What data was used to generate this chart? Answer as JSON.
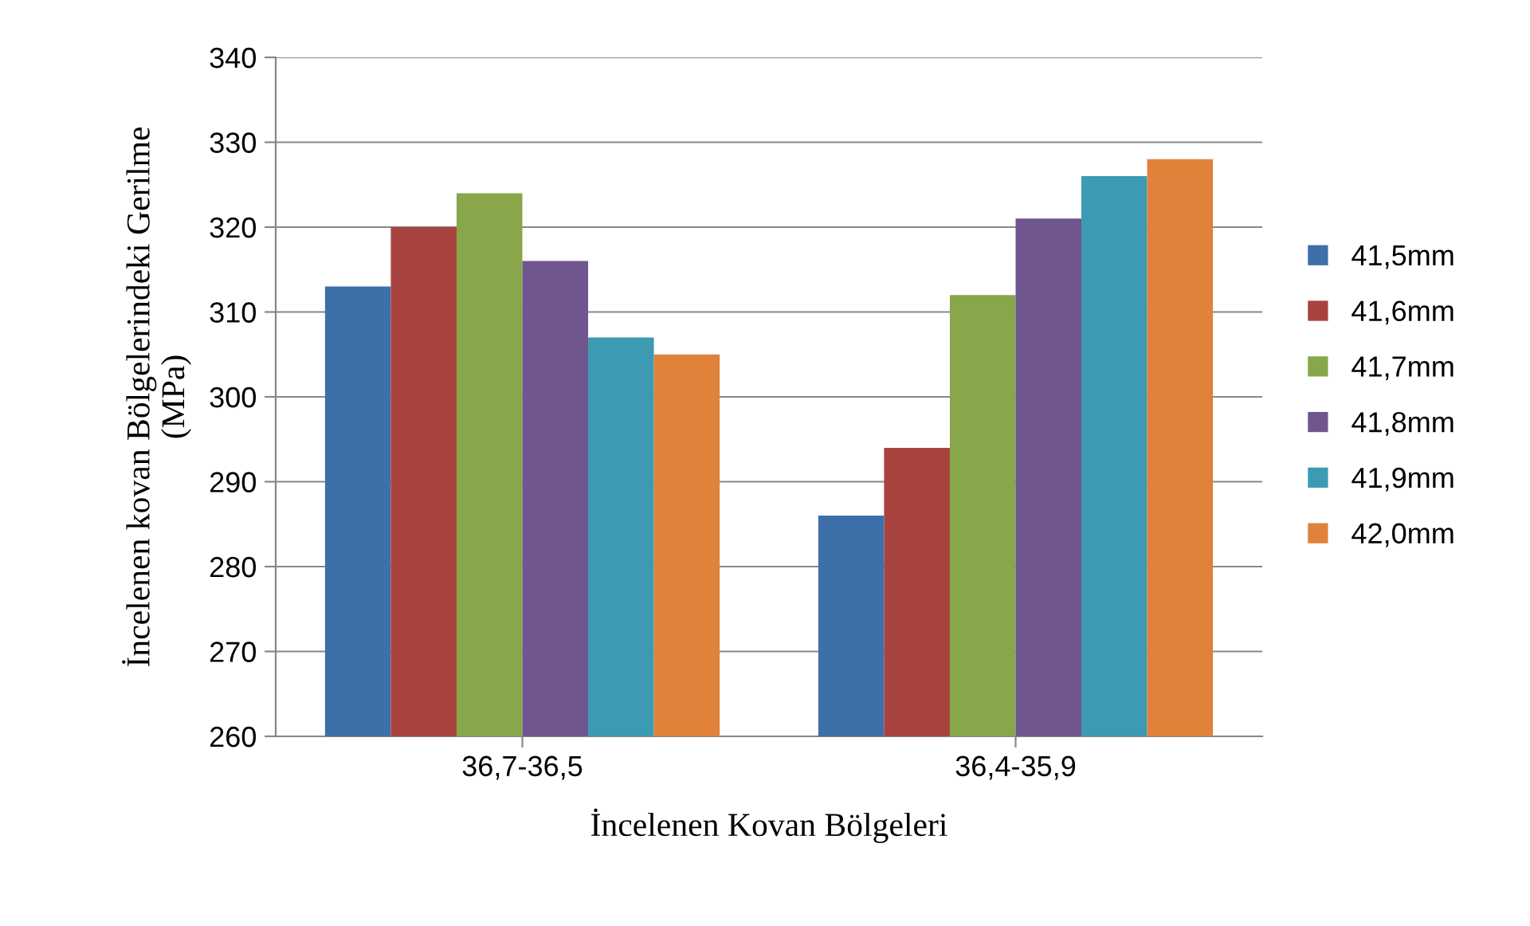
{
  "chart_data": {
    "type": "bar",
    "xlabel": "İncelenen Kovan Bölgeleri",
    "ylabel": "İncelenen kovan Bölgelerindeki Gerilme\n(MPa)",
    "categories": [
      "36,7-36,5",
      "36,4-35,9"
    ],
    "series": [
      {
        "name": "41,5mm",
        "color": "#3d6fa8",
        "values": [
          313,
          286
        ]
      },
      {
        "name": "41,6mm",
        "color": "#a8423f",
        "values": [
          320,
          294
        ]
      },
      {
        "name": "41,7mm",
        "color": "#88a64a",
        "values": [
          324,
          312
        ]
      },
      {
        "name": "41,8mm",
        "color": "#6f568f",
        "values": [
          316,
          321
        ]
      },
      {
        "name": "41,9mm",
        "color": "#3c9ab3",
        "values": [
          307,
          326
        ]
      },
      {
        "name": "42,0mm",
        "color": "#e0823a",
        "values": [
          305,
          328
        ]
      }
    ],
    "ylim": [
      260,
      340
    ],
    "yticks": [
      260,
      270,
      280,
      290,
      300,
      310,
      320,
      330,
      340
    ],
    "grid": "y",
    "legend": "right"
  }
}
